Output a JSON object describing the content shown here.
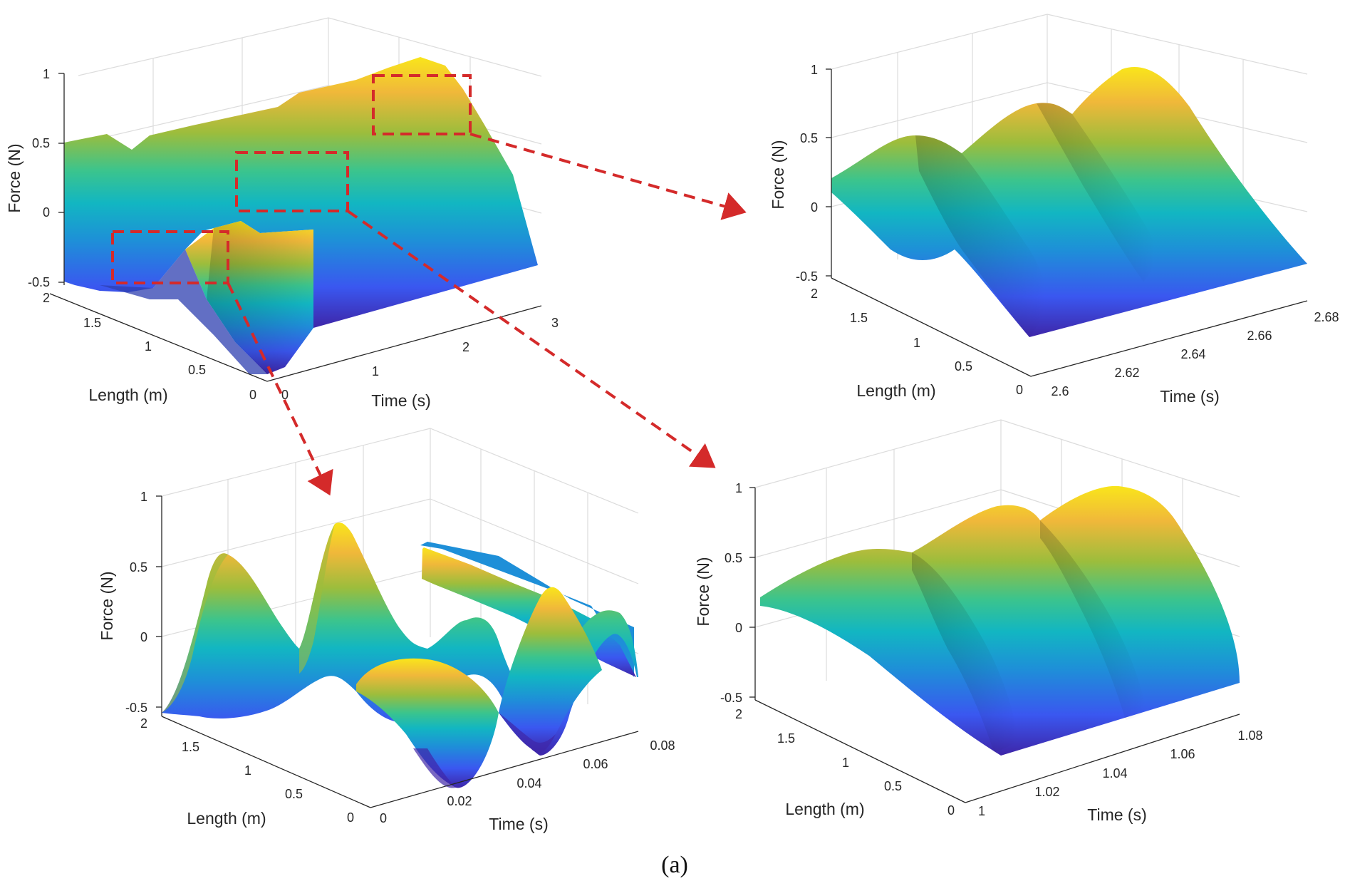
{
  "caption": "(a)",
  "colors": {
    "colormap": [
      "#3e26a8",
      "#3a57f0",
      "#1e8fd8",
      "#12b6c2",
      "#3bc48d",
      "#9cbd3c",
      "#f0b83a",
      "#f9e51b"
    ],
    "zoom_box": "#d42a2a"
  },
  "chart_data": [
    {
      "type": "surface",
      "panel": "top-left (full simulation)",
      "xlabel": "Time (s)",
      "ylabel": "Length (m)",
      "zlabel": "Force (N)",
      "xlim": [
        0,
        3
      ],
      "ylim": [
        0,
        2
      ],
      "zlim": [
        -0.5,
        1
      ],
      "xticks": [
        "0",
        "1",
        "2",
        "3"
      ],
      "yticks": [
        "0",
        "0.5",
        "1",
        "1.5",
        "2"
      ],
      "zticks": [
        "-0.5",
        "0",
        "0.5",
        "1"
      ],
      "surface": {
        "description": "force rises from ~-0.5 N at the start to ~1 N near t=2.6 s, then falls",
        "peak_force": 1,
        "peak_time": 2.6
      },
      "zoom_regions": [
        {
          "time": [
            0,
            0.08
          ],
          "target": "bottom-left"
        },
        {
          "time": [
            1,
            1.08
          ],
          "target": "bottom-right"
        },
        {
          "time": [
            2.6,
            2.68
          ],
          "target": "top-right"
        }
      ]
    },
    {
      "type": "surface",
      "panel": "top-right (zoom)",
      "xlabel": "Time (s)",
      "ylabel": "Length (m)",
      "zlabel": "Force (N)",
      "xlim": [
        2.6,
        2.68
      ],
      "ylim": [
        0,
        2
      ],
      "zlim": [
        -0.5,
        1
      ],
      "xticks": [
        "2.6",
        "2.62",
        "2.64",
        "2.66",
        "2.68"
      ],
      "yticks": [
        "0",
        "0.5",
        "1",
        "1.5",
        "2"
      ],
      "zticks": [
        "-0.5",
        "0",
        "0.5",
        "1"
      ],
      "ridges": [
        {
          "t": 2.623,
          "peak": 0.5
        },
        {
          "t": 2.646,
          "peak": 0.75
        },
        {
          "t": 2.67,
          "peak": 0.98
        }
      ],
      "edge_value_at_length_2": 0.2
    },
    {
      "type": "surface",
      "panel": "bottom-left (zoom)",
      "xlabel": "Time (s)",
      "ylabel": "Length (m)",
      "zlabel": "Force (N)",
      "xlim": [
        0,
        0.08
      ],
      "ylim": [
        0,
        2
      ],
      "zlim": [
        -0.5,
        1
      ],
      "xticks": [
        "0",
        "0.02",
        "0.04",
        "0.06",
        "0.08"
      ],
      "yticks": [
        "0",
        "0.5",
        "1",
        "1.5",
        "2"
      ],
      "zticks": [
        "-0.5",
        "0",
        "0.5",
        "1"
      ],
      "surface": {
        "description": "oscillating standing-wave force, values between about -0.5 N and 0.6 N"
      }
    },
    {
      "type": "surface",
      "panel": "bottom-right (zoom)",
      "xlabel": "Time (s)",
      "ylabel": "Length (m)",
      "zlabel": "Force (N)",
      "xlim": [
        1,
        1.08
      ],
      "ylim": [
        0,
        2
      ],
      "zlim": [
        -0.5,
        1
      ],
      "xticks": [
        "1",
        "1.02",
        "1.04",
        "1.06",
        "1.08"
      ],
      "yticks": [
        "0",
        "0.5",
        "1",
        "1.5",
        "2"
      ],
      "zticks": [
        "-0.5",
        "0",
        "0.5",
        "1"
      ],
      "ridges": [
        {
          "t": 1.023,
          "peak": 0.5
        },
        {
          "t": 1.046,
          "peak": 0.75
        },
        {
          "t": 1.07,
          "peak": 0.98
        }
      ],
      "edge_value_at_length_2": 0.2
    }
  ]
}
